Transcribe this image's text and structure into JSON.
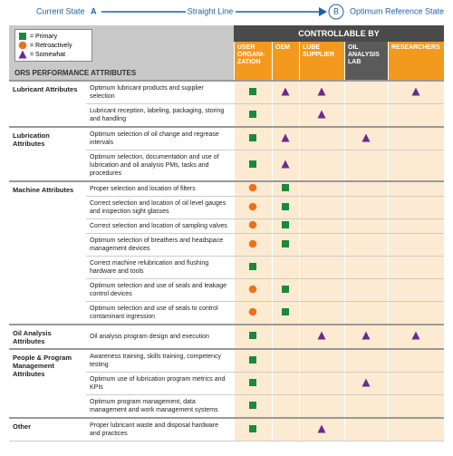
{
  "banner": {
    "start_label": "Current State",
    "start_marker": "A",
    "line_label": "Straight Line",
    "end_marker": "B",
    "end_label": "Optimum Reference State"
  },
  "legend": [
    {
      "symbol": "primary",
      "label": "= Primary"
    },
    {
      "symbol": "retroactively",
      "label": "= Retroactively"
    },
    {
      "symbol": "somewhat",
      "label": "= Somewhat"
    }
  ],
  "table": {
    "section_header": "ORS PERFORMANCE ATTRIBUTES",
    "controllable_header": "CONTROLLABLE BY",
    "columns": [
      "USER ORGANI-ZATION",
      "OEM",
      "LUBE SUPPLIER",
      "OIL ANALYSIS LAB",
      "RESEARCHERS"
    ],
    "groups": [
      {
        "name": "Lubricant Attributes",
        "rows": [
          {
            "attribute": "Optimum lubricant products and supplier selection",
            "marks": [
              "primary",
              "somewhat",
              "somewhat",
              null,
              "somewhat"
            ]
          },
          {
            "attribute": "Lubricant reception, labeling, packaging, storing and handling",
            "marks": [
              "primary",
              null,
              "somewhat",
              null,
              null
            ]
          }
        ]
      },
      {
        "name": "Lubrication Attributes",
        "rows": [
          {
            "attribute": "Optimum selection of oil change and regrease intervals",
            "marks": [
              "primary",
              "somewhat",
              null,
              "somewhat",
              null
            ]
          },
          {
            "attribute": "Optimum selection, documentation and use of lubrication and oil analysis PMs, tasks and procedures",
            "marks": [
              "primary",
              "somewhat",
              null,
              null,
              null
            ]
          }
        ]
      },
      {
        "name": "Machine Attributes",
        "rows": [
          {
            "attribute": "Proper selection and location of filters",
            "marks": [
              "retroactively",
              "primary",
              null,
              null,
              null
            ]
          },
          {
            "attribute": "Correct selection and location of oil level gauges and inspection sight glasses",
            "marks": [
              "retroactively",
              "primary",
              null,
              null,
              null
            ]
          },
          {
            "attribute": "Correct selection and location of sampling valves",
            "marks": [
              "retroactively",
              "primary",
              null,
              null,
              null
            ]
          },
          {
            "attribute": "Optimum selection of breathers and headspace management devices",
            "marks": [
              "retroactively",
              "primary",
              null,
              null,
              null
            ]
          },
          {
            "attribute": "Correct machine relubrication and flushing hardware and tools",
            "marks": [
              "primary",
              null,
              null,
              null,
              null
            ]
          },
          {
            "attribute": "Optimum selection and use of seals and leakage control devices",
            "marks": [
              "retroactively",
              "primary",
              null,
              null,
              null
            ]
          },
          {
            "attribute": "Optimum selection and use of seals to control contaminant ingression",
            "marks": [
              "retroactively",
              "primary",
              null,
              null,
              null
            ]
          }
        ]
      },
      {
        "name": "Oil Analysis Attributes",
        "rows": [
          {
            "attribute": "Oil analysis program design and execution",
            "marks": [
              "primary",
              null,
              "somewhat",
              "somewhat",
              "somewhat"
            ]
          }
        ]
      },
      {
        "name": "People & Program Management Attributes",
        "rows": [
          {
            "attribute": "Awareness training, skills training, competency testing",
            "marks": [
              "primary",
              null,
              null,
              null,
              null
            ]
          },
          {
            "attribute": "Optimum use of lubrication program metrics and KPIs",
            "marks": [
              "primary",
              null,
              null,
              "somewhat",
              null
            ]
          },
          {
            "attribute": "Optimum program management, data management and work management systems",
            "marks": [
              "primary",
              null,
              null,
              null,
              null
            ]
          }
        ]
      },
      {
        "name": "Other",
        "rows": [
          {
            "attribute": "Proper lubricant waste and disposal hardware and practices",
            "marks": [
              "primary",
              null,
              "somewhat",
              null,
              null
            ]
          }
        ]
      }
    ]
  }
}
